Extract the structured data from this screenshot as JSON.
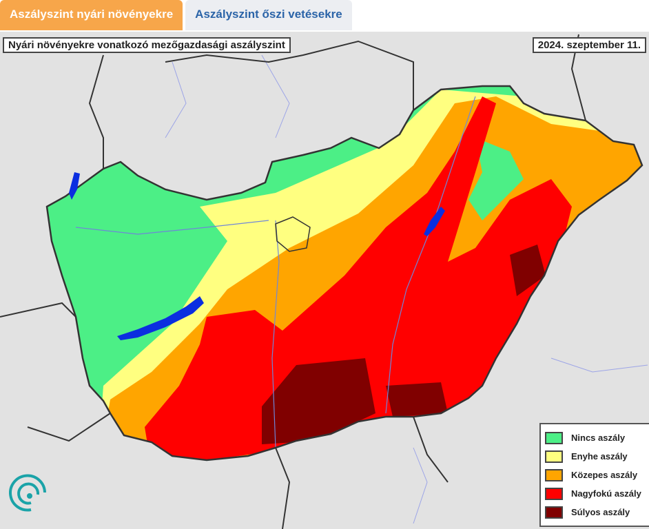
{
  "tabs": [
    {
      "label": "Aszályszint nyári növényekre",
      "active": true
    },
    {
      "label": "Aszályszint őszi vetésekre",
      "active": false
    }
  ],
  "map": {
    "title": "Nyári növényekre vonatkozó mezőgazdasági aszályszint",
    "date": "2024. szeptember 11."
  },
  "legend": {
    "items": [
      {
        "label": "Nincs aszály",
        "color": "#4cef86"
      },
      {
        "label": "Enyhe aszály",
        "color": "#ffff80"
      },
      {
        "label": "Közepes aszály",
        "color": "#ffa500"
      },
      {
        "label": "Nagyfokú aszály",
        "color": "#ff0000"
      },
      {
        "label": "Súlyos aszály",
        "color": "#800000"
      }
    ]
  },
  "colors": {
    "accent_tab": "#f7a64a",
    "tab_text": "#2b64a8",
    "water": "#0b2ee0",
    "logo": "#1aa3a8"
  }
}
